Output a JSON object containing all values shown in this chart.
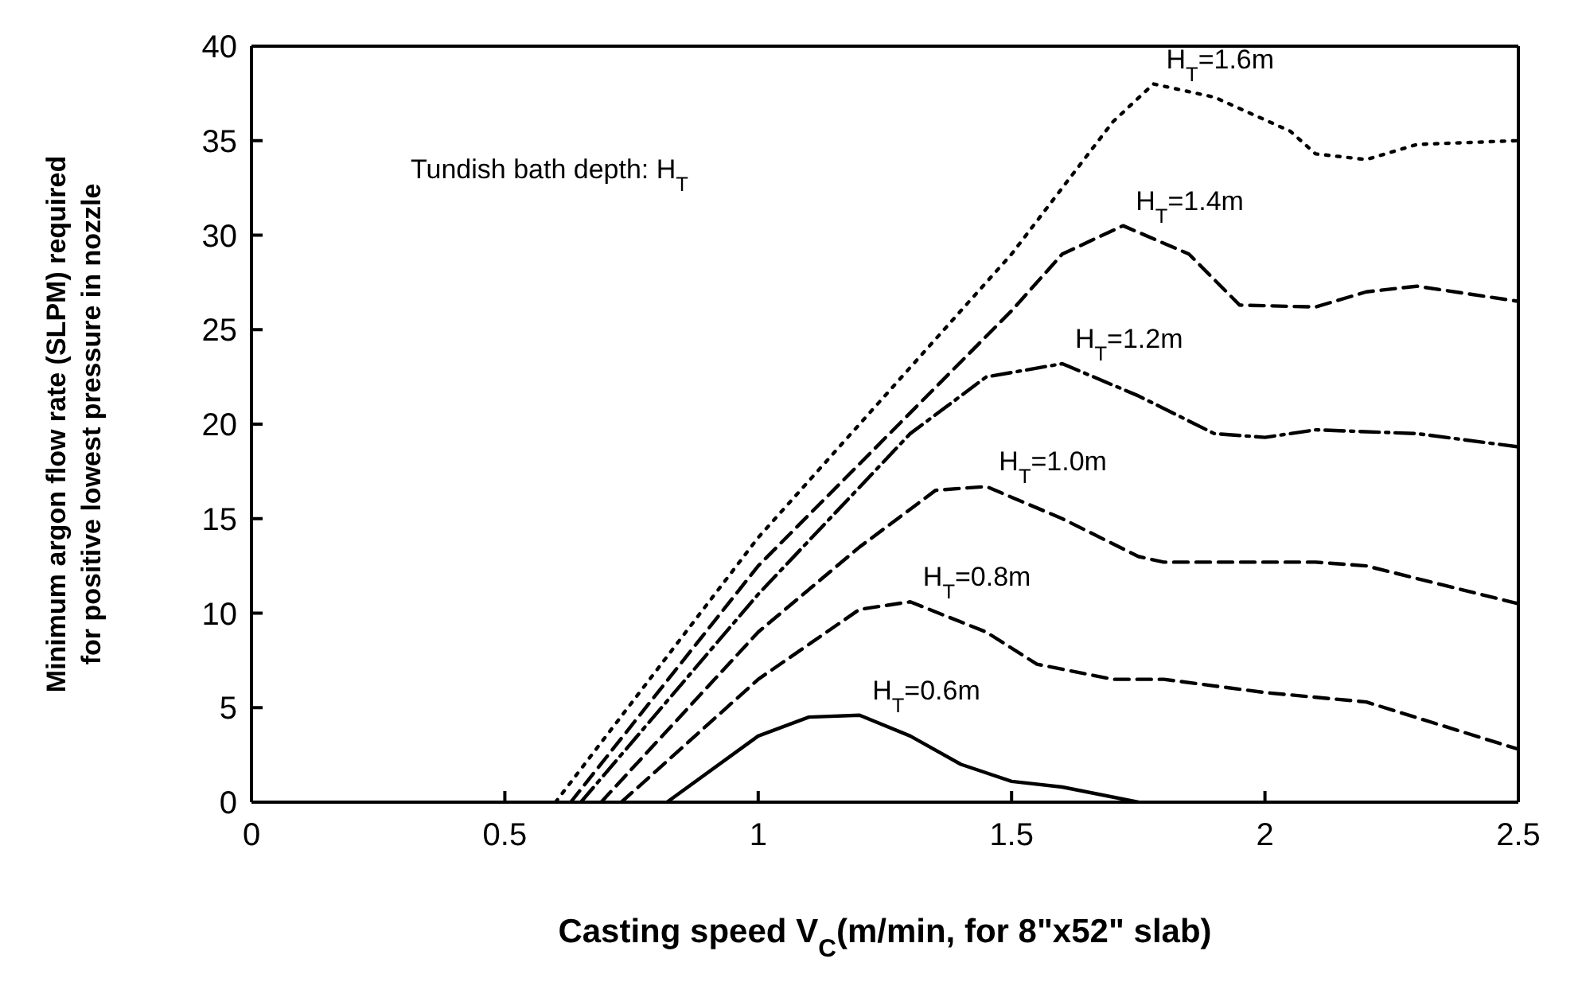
{
  "chart_data": {
    "type": "line",
    "xlabel": "Casting speed  V$_{C}$(m/min, for 8\"x52\" slab)",
    "ylabel": "Minimum argon flow rate (SLPM) required\nfor positive lowest pressure in nozzle",
    "annotations": [
      "Tundish bath depth: H$_{T}$"
    ],
    "xlim": [
      0,
      2.5
    ],
    "xticks": [
      0,
      0.5,
      1,
      1.5,
      2,
      2.5
    ],
    "ylim": [
      0,
      40
    ],
    "yticks": [
      0,
      5,
      10,
      15,
      20,
      25,
      30,
      35,
      40
    ],
    "marker": "none",
    "series": [
      {
        "name": "H$_{T}$=1.6m",
        "color": "#000000",
        "line_style": "dotted",
        "x": [
          0.6,
          1.0,
          1.5,
          1.7,
          1.78,
          1.9,
          2.05,
          2.1,
          2.2,
          2.3,
          2.5
        ],
        "values": [
          0,
          14,
          29,
          36,
          38,
          37.3,
          35.5,
          34.3,
          34,
          34.8,
          35
        ]
      },
      {
        "name": "H$_{T}$=1.4m",
        "color": "#000000",
        "line_style": "dashed",
        "x": [
          0.63,
          1.0,
          1.5,
          1.6,
          1.72,
          1.85,
          1.95,
          2.1,
          2.2,
          2.3,
          2.5
        ],
        "values": [
          0,
          12.5,
          26,
          29,
          30.5,
          29,
          26.3,
          26.2,
          27,
          27.3,
          26.5
        ]
      },
      {
        "name": "H$_{T}$=1.2m",
        "color": "#000000",
        "line_style": "dashdot",
        "x": [
          0.65,
          1.0,
          1.3,
          1.45,
          1.6,
          1.75,
          1.9,
          2.0,
          2.1,
          2.3,
          2.5
        ],
        "values": [
          0,
          11,
          19.5,
          22.5,
          23.2,
          21.5,
          19.5,
          19.3,
          19.7,
          19.5,
          18.8
        ]
      },
      {
        "name": "H$_{T}$=1.0m",
        "color": "#000000",
        "line_style": "dashed",
        "x": [
          0.69,
          1.0,
          1.2,
          1.35,
          1.45,
          1.6,
          1.75,
          1.8,
          2.1,
          2.2,
          2.35,
          2.5
        ],
        "values": [
          0,
          9,
          13.5,
          16.5,
          16.7,
          15,
          13,
          12.7,
          12.7,
          12.5,
          11.5,
          10.5
        ]
      },
      {
        "name": "H$_{T}$=0.8m",
        "color": "#000000",
        "line_style": "dashed",
        "x": [
          0.73,
          1.0,
          1.2,
          1.3,
          1.45,
          1.55,
          1.7,
          1.8,
          2.0,
          2.2,
          2.5
        ],
        "values": [
          0,
          6.5,
          10.2,
          10.6,
          9,
          7.3,
          6.5,
          6.5,
          5.8,
          5.3,
          2.8
        ]
      },
      {
        "name": "H$_{T}$=0.6m",
        "color": "#000000",
        "line_style": "solid",
        "x": [
          0.82,
          1.0,
          1.1,
          1.2,
          1.3,
          1.4,
          1.5,
          1.6,
          1.75
        ],
        "values": [
          0,
          3.5,
          4.5,
          4.6,
          3.5,
          2,
          1.1,
          0.8,
          0
        ]
      }
    ]
  }
}
